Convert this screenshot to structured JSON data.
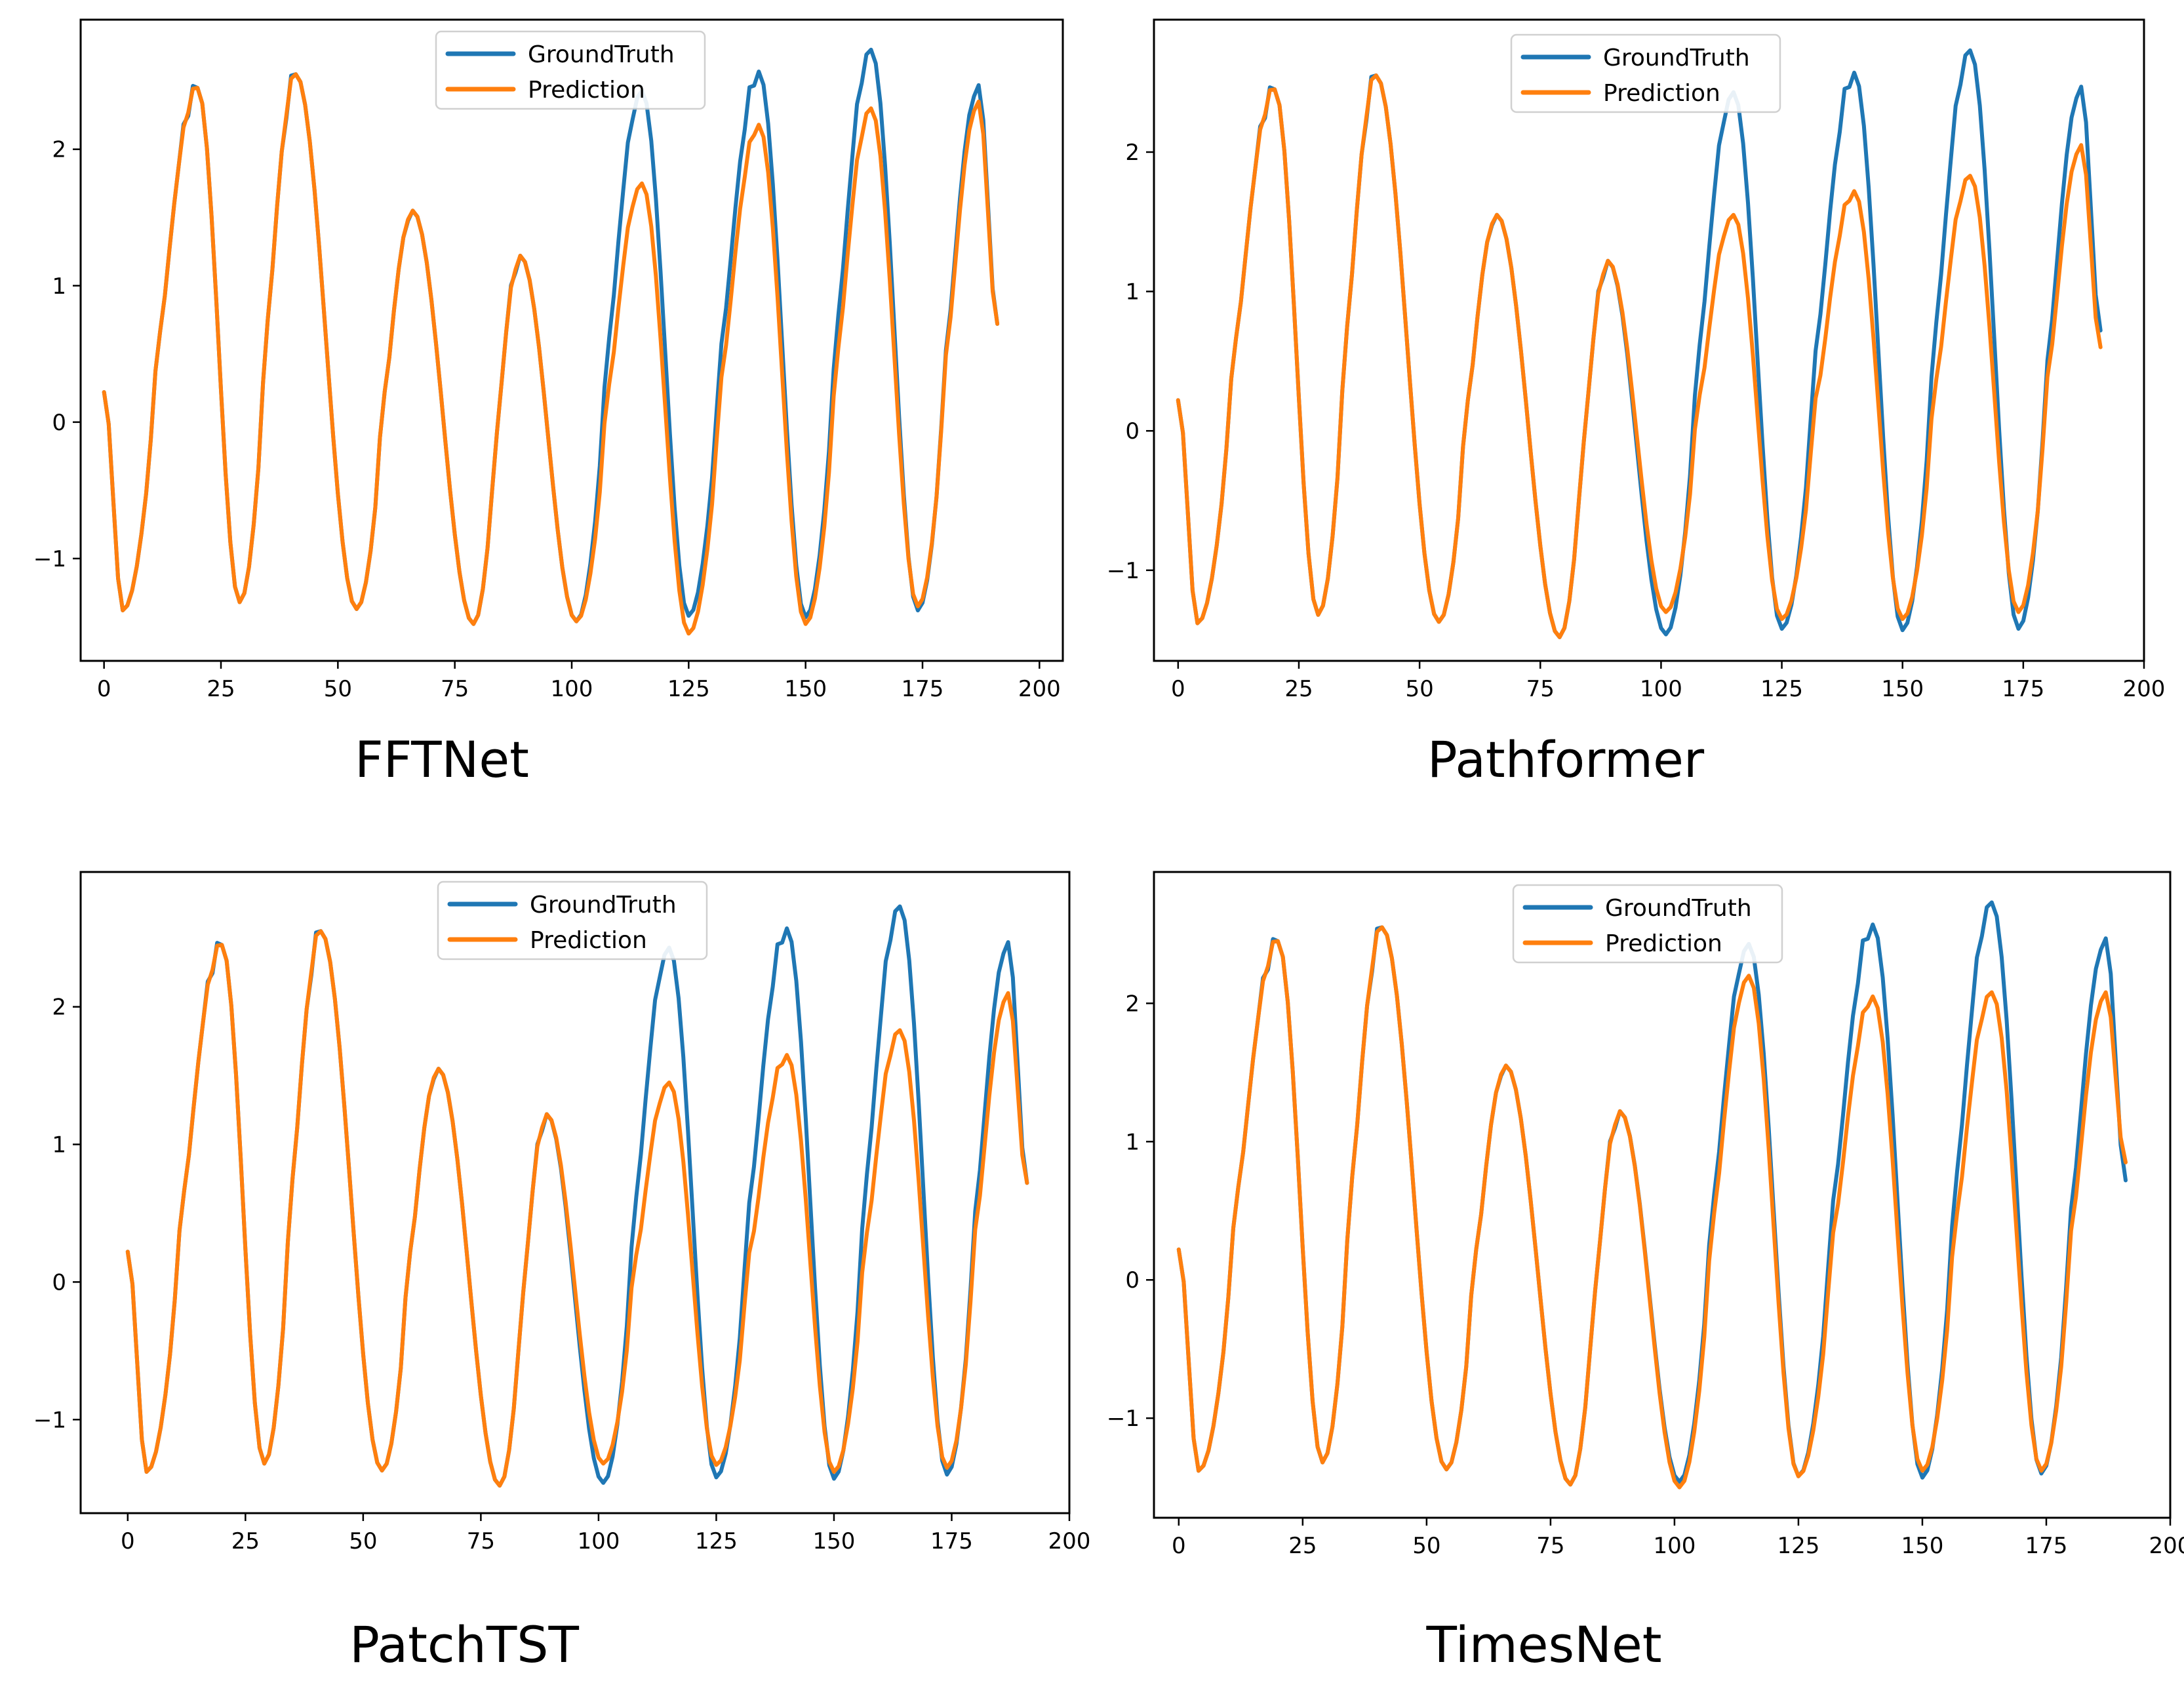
{
  "figure": {
    "groundtruth_color": "#1f77b4",
    "prediction_color": "#ff7f0e",
    "legend_labels": [
      "GroundTruth",
      "Prediction"
    ]
  },
  "chart_data": [
    {
      "type": "line",
      "title": "FFTNet",
      "xlabel": "",
      "ylabel": "",
      "xlim": [
        -5,
        205
      ],
      "ylim": [
        -1.75,
        2.95
      ],
      "xticks": [
        0,
        25,
        50,
        75,
        100,
        125,
        150,
        175,
        200
      ],
      "xtick_labels": [
        "0",
        "25",
        "50",
        "75",
        "100",
        "125",
        "150",
        "175",
        "200"
      ],
      "yticks": [
        -1,
        0,
        1,
        2
      ],
      "ytick_labels": [
        "−1",
        "0",
        "1",
        "2"
      ],
      "legend_position": "top-center",
      "pred_scale": [
        1.0,
        1.0,
        1.0,
        1.0,
        0.72,
        0.85,
        0.85,
        0.95
      ],
      "series": [
        {
          "name": "GroundTruth",
          "peaks": [
            {
              "x": 0,
              "y": 0.22
            },
            {
              "x": 4,
              "y": -1.38
            },
            {
              "x": 20,
              "y": 2.45
            },
            {
              "x": 29,
              "y": -1.32
            },
            {
              "x": 41,
              "y": 2.55
            },
            {
              "x": 54,
              "y": -1.37
            },
            {
              "x": 66,
              "y": 1.55
            },
            {
              "x": 79,
              "y": -1.48
            },
            {
              "x": 89,
              "y": 1.22
            },
            {
              "x": 101,
              "y": -1.46
            },
            {
              "x": 115,
              "y": 2.43
            },
            {
              "x": 125,
              "y": -1.42
            },
            {
              "x": 140,
              "y": 2.57
            },
            {
              "x": 150,
              "y": -1.43
            },
            {
              "x": 164,
              "y": 2.73
            },
            {
              "x": 174,
              "y": -1.38
            },
            {
              "x": 187,
              "y": 2.47
            },
            {
              "x": 191,
              "y": 0.72
            }
          ]
        },
        {
          "name": "Prediction",
          "peaks": [
            {
              "x": 0,
              "y": 0.22
            },
            {
              "x": 4,
              "y": -1.38
            },
            {
              "x": 20,
              "y": 2.45
            },
            {
              "x": 29,
              "y": -1.32
            },
            {
              "x": 41,
              "y": 2.55
            },
            {
              "x": 54,
              "y": -1.37
            },
            {
              "x": 66,
              "y": 1.55
            },
            {
              "x": 79,
              "y": -1.48
            },
            {
              "x": 89,
              "y": 1.22
            },
            {
              "x": 101,
              "y": -1.46
            },
            {
              "x": 115,
              "y": 1.75
            },
            {
              "x": 125,
              "y": -1.55
            },
            {
              "x": 140,
              "y": 2.18
            },
            {
              "x": 150,
              "y": -1.48
            },
            {
              "x": 164,
              "y": 2.3
            },
            {
              "x": 174,
              "y": -1.35
            },
            {
              "x": 187,
              "y": 2.35
            },
            {
              "x": 191,
              "y": 0.72
            }
          ]
        }
      ]
    },
    {
      "type": "line",
      "title": "Pathformer",
      "xlabel": "",
      "ylabel": "",
      "xlim": [
        -5,
        200
      ],
      "ylim": [
        -1.65,
        2.95
      ],
      "xticks": [
        0,
        25,
        50,
        75,
        100,
        125,
        150,
        175,
        200
      ],
      "xtick_labels": [
        "0",
        "25",
        "50",
        "75",
        "100",
        "125",
        "150",
        "175",
        "200"
      ],
      "yticks": [
        -1,
        0,
        1,
        2
      ],
      "ytick_labels": [
        "−1",
        "0",
        "1",
        "2"
      ],
      "legend_position": "top-center",
      "pred_scale": [
        1.0,
        1.0,
        1.0,
        1.0,
        0.62,
        0.68,
        0.66,
        0.82
      ],
      "series": [
        {
          "name": "GroundTruth",
          "peaks": [
            {
              "x": 0,
              "y": 0.22
            },
            {
              "x": 4,
              "y": -1.38
            },
            {
              "x": 20,
              "y": 2.45
            },
            {
              "x": 29,
              "y": -1.32
            },
            {
              "x": 41,
              "y": 2.55
            },
            {
              "x": 54,
              "y": -1.37
            },
            {
              "x": 66,
              "y": 1.55
            },
            {
              "x": 79,
              "y": -1.48
            },
            {
              "x": 89,
              "y": 1.22
            },
            {
              "x": 101,
              "y": -1.46
            },
            {
              "x": 115,
              "y": 2.43
            },
            {
              "x": 125,
              "y": -1.42
            },
            {
              "x": 140,
              "y": 2.57
            },
            {
              "x": 150,
              "y": -1.43
            },
            {
              "x": 164,
              "y": 2.73
            },
            {
              "x": 174,
              "y": -1.42
            },
            {
              "x": 187,
              "y": 2.47
            },
            {
              "x": 191,
              "y": 0.72
            }
          ]
        },
        {
          "name": "Prediction",
          "peaks": [
            {
              "x": 0,
              "y": 0.22
            },
            {
              "x": 4,
              "y": -1.38
            },
            {
              "x": 20,
              "y": 2.45
            },
            {
              "x": 29,
              "y": -1.32
            },
            {
              "x": 41,
              "y": 2.55
            },
            {
              "x": 54,
              "y": -1.37
            },
            {
              "x": 66,
              "y": 1.55
            },
            {
              "x": 79,
              "y": -1.48
            },
            {
              "x": 89,
              "y": 1.22
            },
            {
              "x": 101,
              "y": -1.3
            },
            {
              "x": 115,
              "y": 1.55
            },
            {
              "x": 125,
              "y": -1.35
            },
            {
              "x": 140,
              "y": 1.72
            },
            {
              "x": 150,
              "y": -1.35
            },
            {
              "x": 164,
              "y": 1.83
            },
            {
              "x": 174,
              "y": -1.3
            },
            {
              "x": 187,
              "y": 2.05
            },
            {
              "x": 191,
              "y": 0.6
            }
          ]
        }
      ]
    },
    {
      "type": "line",
      "title": "PatchTST",
      "xlabel": "",
      "ylabel": "",
      "xlim": [
        -10,
        200
      ],
      "ylim": [
        -1.68,
        2.98
      ],
      "xticks": [
        0,
        25,
        50,
        75,
        100,
        125,
        150,
        175,
        200
      ],
      "xtick_labels": [
        "0",
        "25",
        "50",
        "75",
        "100",
        "125",
        "150",
        "175",
        "200"
      ],
      "yticks": [
        -1,
        0,
        1,
        2
      ],
      "ytick_labels": [
        "−1",
        "0",
        "1",
        "2"
      ],
      "legend_position": "top-center",
      "pred_scale": [
        1.0,
        1.0,
        1.0,
        1.0,
        0.56,
        0.64,
        0.68,
        0.85
      ],
      "series": [
        {
          "name": "GroundTruth",
          "peaks": [
            {
              "x": 0,
              "y": 0.22
            },
            {
              "x": 4,
              "y": -1.38
            },
            {
              "x": 20,
              "y": 2.45
            },
            {
              "x": 29,
              "y": -1.32
            },
            {
              "x": 41,
              "y": 2.55
            },
            {
              "x": 54,
              "y": -1.37
            },
            {
              "x": 66,
              "y": 1.55
            },
            {
              "x": 79,
              "y": -1.48
            },
            {
              "x": 89,
              "y": 1.22
            },
            {
              "x": 101,
              "y": -1.46
            },
            {
              "x": 115,
              "y": 2.43
            },
            {
              "x": 125,
              "y": -1.42
            },
            {
              "x": 140,
              "y": 2.57
            },
            {
              "x": 150,
              "y": -1.43
            },
            {
              "x": 164,
              "y": 2.73
            },
            {
              "x": 174,
              "y": -1.4
            },
            {
              "x": 187,
              "y": 2.47
            },
            {
              "x": 191,
              "y": 0.72
            }
          ]
        },
        {
          "name": "Prediction",
          "peaks": [
            {
              "x": 0,
              "y": 0.22
            },
            {
              "x": 4,
              "y": -1.38
            },
            {
              "x": 20,
              "y": 2.45
            },
            {
              "x": 29,
              "y": -1.32
            },
            {
              "x": 41,
              "y": 2.55
            },
            {
              "x": 54,
              "y": -1.37
            },
            {
              "x": 66,
              "y": 1.55
            },
            {
              "x": 79,
              "y": -1.48
            },
            {
              "x": 89,
              "y": 1.22
            },
            {
              "x": 101,
              "y": -1.32
            },
            {
              "x": 115,
              "y": 1.45
            },
            {
              "x": 125,
              "y": -1.33
            },
            {
              "x": 140,
              "y": 1.65
            },
            {
              "x": 150,
              "y": -1.38
            },
            {
              "x": 164,
              "y": 1.83
            },
            {
              "x": 174,
              "y": -1.35
            },
            {
              "x": 187,
              "y": 2.1
            },
            {
              "x": 191,
              "y": 0.72
            }
          ]
        }
      ]
    },
    {
      "type": "line",
      "title": "TimesNet",
      "xlabel": "",
      "ylabel": "",
      "xlim": [
        -5,
        200
      ],
      "ylim": [
        -1.72,
        2.95
      ],
      "xticks": [
        0,
        25,
        50,
        75,
        100,
        125,
        150,
        175,
        200
      ],
      "xtick_labels": [
        "0",
        "25",
        "50",
        "75",
        "100",
        "125",
        "150",
        "175",
        "200"
      ],
      "yticks": [
        -1,
        0,
        1,
        2
      ],
      "ytick_labels": [
        "−1",
        "0",
        "1",
        "2"
      ],
      "legend_position": "top-center",
      "pred_scale": [
        1.0,
        1.0,
        1.0,
        1.0,
        0.9,
        0.82,
        0.8,
        0.85
      ],
      "series": [
        {
          "name": "GroundTruth",
          "peaks": [
            {
              "x": 0,
              "y": 0.22
            },
            {
              "x": 4,
              "y": -1.38
            },
            {
              "x": 20,
              "y": 2.45
            },
            {
              "x": 29,
              "y": -1.32
            },
            {
              "x": 41,
              "y": 2.55
            },
            {
              "x": 54,
              "y": -1.37
            },
            {
              "x": 66,
              "y": 1.55
            },
            {
              "x": 79,
              "y": -1.48
            },
            {
              "x": 89,
              "y": 1.22
            },
            {
              "x": 101,
              "y": -1.46
            },
            {
              "x": 115,
              "y": 2.43
            },
            {
              "x": 125,
              "y": -1.42
            },
            {
              "x": 140,
              "y": 2.57
            },
            {
              "x": 150,
              "y": -1.43
            },
            {
              "x": 164,
              "y": 2.73
            },
            {
              "x": 174,
              "y": -1.4
            },
            {
              "x": 187,
              "y": 2.47
            },
            {
              "x": 191,
              "y": 0.72
            }
          ]
        },
        {
          "name": "Prediction",
          "peaks": [
            {
              "x": 0,
              "y": 0.22
            },
            {
              "x": 4,
              "y": -1.38
            },
            {
              "x": 20,
              "y": 2.45
            },
            {
              "x": 29,
              "y": -1.32
            },
            {
              "x": 41,
              "y": 2.55
            },
            {
              "x": 54,
              "y": -1.37
            },
            {
              "x": 66,
              "y": 1.55
            },
            {
              "x": 79,
              "y": -1.48
            },
            {
              "x": 89,
              "y": 1.22
            },
            {
              "x": 101,
              "y": -1.5
            },
            {
              "x": 115,
              "y": 2.2
            },
            {
              "x": 125,
              "y": -1.42
            },
            {
              "x": 140,
              "y": 2.05
            },
            {
              "x": 150,
              "y": -1.38
            },
            {
              "x": 164,
              "y": 2.08
            },
            {
              "x": 174,
              "y": -1.38
            },
            {
              "x": 187,
              "y": 2.08
            },
            {
              "x": 191,
              "y": 0.85
            }
          ]
        }
      ]
    }
  ]
}
